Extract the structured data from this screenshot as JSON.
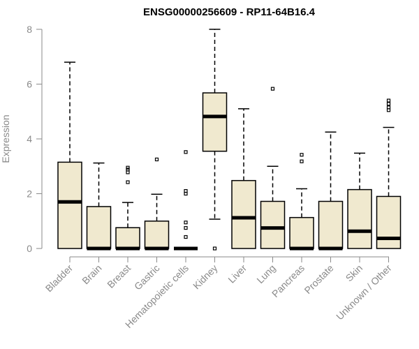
{
  "chart_data": {
    "type": "boxplot",
    "title": "ENSG00000256609 - RP11-64B16.4",
    "ylabel": "Expression",
    "xlabel": "",
    "ylim": [
      0,
      8
    ],
    "yticks": [
      "0",
      "2",
      "4",
      "6",
      "8"
    ],
    "box_fill": "#f0e9cf",
    "categories": [
      "Bladder",
      "Brain",
      "Breast",
      "Gastric",
      "Hematopoietic cells",
      "Kidney",
      "Liver",
      "Lung",
      "Pancreas",
      "Prostate",
      "Skin",
      "Unknown / Other"
    ],
    "boxes": [
      {
        "whisker_low": 0,
        "q1": 0,
        "median": 1.7,
        "q3": 3.15,
        "whisker_high": 6.8,
        "outliers": []
      },
      {
        "whisker_low": 0,
        "q1": 0,
        "median": 0,
        "q3": 1.53,
        "whisker_high": 3.12,
        "outliers": []
      },
      {
        "whisker_low": 0,
        "q1": 0,
        "median": 0,
        "q3": 0.76,
        "whisker_high": 1.68,
        "outliers": [
          2.42,
          2.78,
          2.88,
          2.95
        ]
      },
      {
        "whisker_low": 0,
        "q1": 0,
        "median": 0,
        "q3": 1.0,
        "whisker_high": 1.98,
        "outliers": [
          3.25
        ]
      },
      {
        "whisker_low": 0,
        "q1": 0,
        "median": 0,
        "q3": 0,
        "whisker_high": 0,
        "outliers": [
          0.42,
          0.75,
          0.95,
          2.0,
          2.1,
          3.52
        ]
      },
      {
        "whisker_low": 1.07,
        "q1": 3.55,
        "median": 4.82,
        "q3": 5.68,
        "whisker_high": 8.0,
        "outliers": [
          0
        ]
      },
      {
        "whisker_low": 0,
        "q1": 0,
        "median": 1.12,
        "q3": 2.48,
        "whisker_high": 5.1,
        "outliers": []
      },
      {
        "whisker_low": 0,
        "q1": 0,
        "median": 0.75,
        "q3": 1.72,
        "whisker_high": 3.0,
        "outliers": [
          5.83
        ]
      },
      {
        "whisker_low": 0,
        "q1": 0,
        "median": 0,
        "q3": 1.13,
        "whisker_high": 2.18,
        "outliers": [
          3.18,
          3.42
        ]
      },
      {
        "whisker_low": 0,
        "q1": 0,
        "median": 0,
        "q3": 1.72,
        "whisker_high": 4.25,
        "outliers": []
      },
      {
        "whisker_low": 0,
        "q1": 0,
        "median": 0.63,
        "q3": 2.15,
        "whisker_high": 3.48,
        "outliers": []
      },
      {
        "whisker_low": 0,
        "q1": 0,
        "median": 0.37,
        "q3": 1.9,
        "whisker_high": 4.42,
        "outliers": [
          5.05,
          5.15,
          5.28,
          5.4
        ]
      }
    ]
  }
}
